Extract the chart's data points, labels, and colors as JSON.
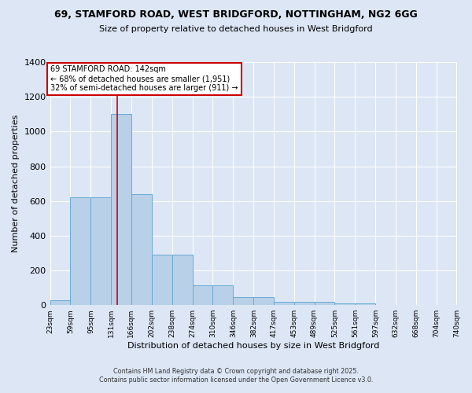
{
  "title_line1": "69, STAMFORD ROAD, WEST BRIDGFORD, NOTTINGHAM, NG2 6GG",
  "title_line2": "Size of property relative to detached houses in West Bridgford",
  "xlabel": "Distribution of detached houses by size in West Bridgford",
  "ylabel": "Number of detached properties",
  "bar_lefts": [
    23,
    59,
    95,
    131,
    166,
    202,
    238,
    274,
    310,
    346,
    382,
    417,
    453,
    489,
    525,
    561,
    597,
    632,
    668,
    704
  ],
  "bar_widths": [
    36,
    36,
    36,
    35,
    36,
    36,
    36,
    36,
    36,
    36,
    35,
    36,
    36,
    36,
    36,
    36,
    35,
    36,
    36,
    36
  ],
  "bar_heights": [
    27,
    621,
    621,
    1100,
    640,
    290,
    290,
    115,
    115,
    48,
    48,
    20,
    20,
    20,
    10,
    10,
    0,
    0,
    0,
    0
  ],
  "bar_color": "#b8d0e8",
  "bar_edge_color": "#6aaad4",
  "bg_color": "#dce6f5",
  "grid_color": "#ffffff",
  "vline_x": 142,
  "vline_color": "#cc0000",
  "annotation_text": "69 STAMFORD ROAD: 142sqm\n← 68% of detached houses are smaller (1,951)\n32% of semi-detached houses are larger (911) →",
  "annotation_box_color": "#ffffff",
  "annotation_box_edge": "#cc0000",
  "ylim": [
    0,
    1400
  ],
  "yticks": [
    0,
    200,
    400,
    600,
    800,
    1000,
    1200,
    1400
  ],
  "xlim": [
    23,
    740
  ],
  "xtick_positions": [
    23,
    59,
    95,
    131,
    166,
    202,
    238,
    274,
    310,
    346,
    382,
    417,
    453,
    489,
    525,
    561,
    597,
    632,
    668,
    704,
    740
  ],
  "xtick_labels": [
    "23sqm",
    "59sqm",
    "95sqm",
    "131sqm",
    "166sqm",
    "202sqm",
    "238sqm",
    "274sqm",
    "310sqm",
    "346sqm",
    "382sqm",
    "417sqm",
    "453sqm",
    "489sqm",
    "525sqm",
    "561sqm",
    "597sqm",
    "632sqm",
    "668sqm",
    "704sqm",
    "740sqm"
  ],
  "footer_line1": "Contains HM Land Registry data © Crown copyright and database right 2025.",
  "footer_line2": "Contains public sector information licensed under the Open Government Licence v3.0."
}
